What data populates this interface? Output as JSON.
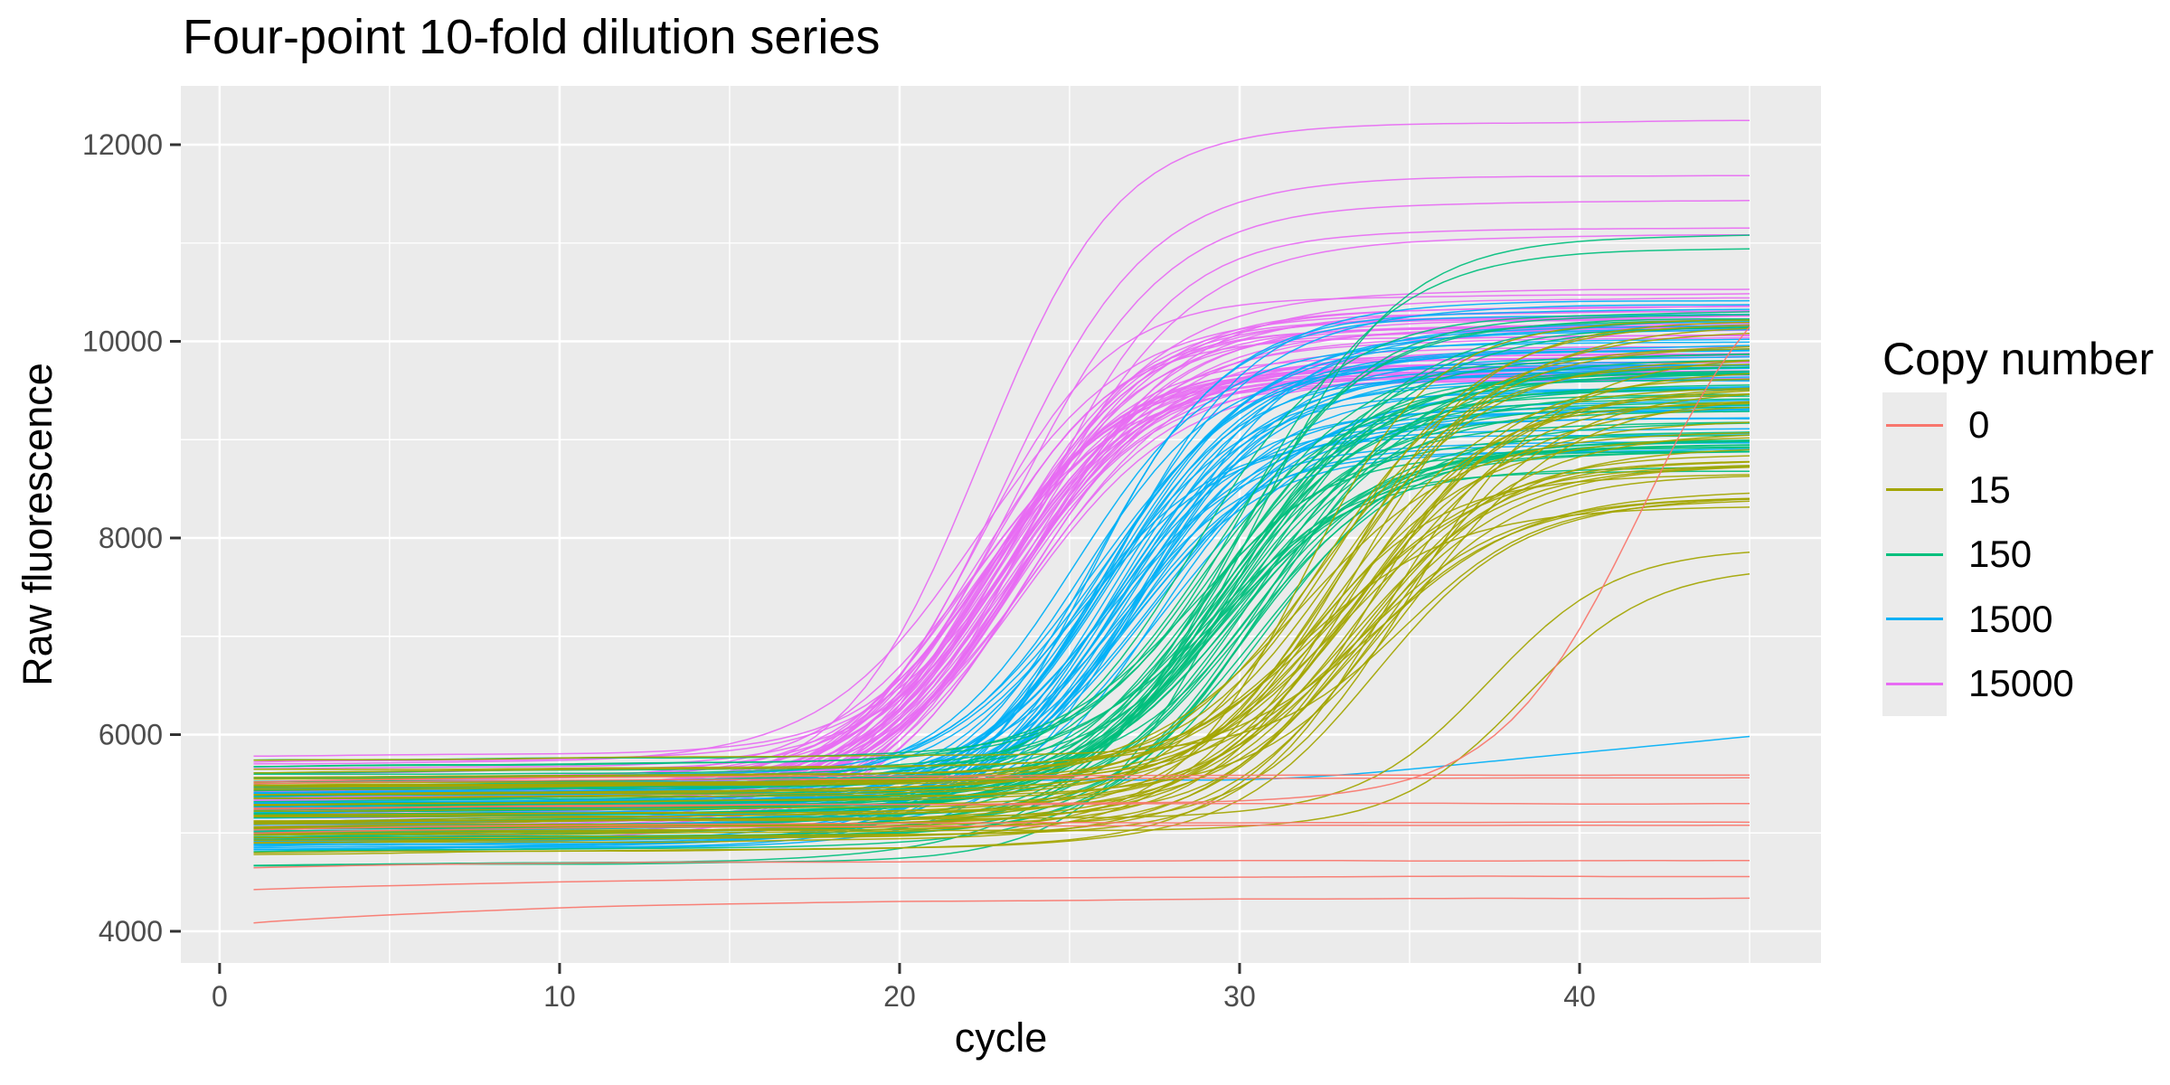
{
  "chart_data": {
    "type": "line",
    "title": "Four-point 10-fold dilution series",
    "xlabel": "cycle",
    "ylabel": "Raw fluorescence",
    "legend_title": "Copy number",
    "legend_position": "right",
    "grid": true,
    "x_ticks": [
      0,
      10,
      20,
      30,
      40
    ],
    "x_minor_ticks": [
      5,
      15,
      25,
      35,
      45
    ],
    "y_ticks": [
      4000,
      6000,
      8000,
      10000,
      12000
    ],
    "y_minor_ticks": [
      5000,
      7000,
      9000,
      11000
    ],
    "xlim": [
      -1.14,
      47.1
    ],
    "ylim": [
      3678,
      12598
    ],
    "cycle_range": [
      1,
      45
    ],
    "cycle_step": 0.5,
    "seed": 11,
    "series": [
      {
        "name": "0",
        "color": "#F8766D",
        "n_wells": 9,
        "kind": "ntc",
        "flat_wells": [
          [
            4085,
            4340
          ],
          [
            4420,
            4560
          ],
          [
            4650,
            4720
          ],
          [
            5000,
            5080
          ],
          [
            5030,
            5110
          ],
          [
            5240,
            5300
          ],
          [
            5500,
            5560
          ],
          [
            5520,
            5590
          ]
        ],
        "late_riser": {
          "base": 5250,
          "cq": 41.8,
          "steepness": 2.1,
          "end_value": 10150
        }
      },
      {
        "name": "15",
        "color": "#A3A500",
        "n_wells": 42,
        "kind": "dilution",
        "n_typical": 40,
        "cq_range": [
          31.4,
          35.6
        ],
        "plateau_range": [
          8300,
          10300
        ],
        "base_range": [
          4620,
          5780
        ],
        "late_wells": [
          {
            "cq": 37.3,
            "steepness": 1.9,
            "end_value": 7860
          },
          {
            "cq": 38.4,
            "steepness": 1.9,
            "end_value": 7640
          }
        ]
      },
      {
        "name": "150",
        "color": "#00BF7D",
        "n_wells": 46,
        "kind": "dilution",
        "n_typical": 44,
        "cq_range": [
          28.1,
          31.2
        ],
        "plateau_range": [
          8650,
          10300
        ],
        "base_range": [
          4650,
          5800
        ],
        "plateau_outliers": [
          {
            "plateau": 10950,
            "cq": 30.2
          },
          {
            "plateau": 11080,
            "cq": 30.6
          }
        ]
      },
      {
        "name": "1500",
        "color": "#00B0F6",
        "n_wells": 45,
        "kind": "dilution",
        "n_typical": 44,
        "cq_range": [
          24.8,
          27.9
        ],
        "plateau_range": [
          8850,
          10420
        ],
        "base_range": [
          4700,
          5750
        ],
        "failed_wells": [
          {
            "base": 5520,
            "rise_start": 29,
            "end_value": 6030
          }
        ]
      },
      {
        "name": "15000",
        "color": "#E76BF3",
        "n_wells": 51,
        "kind": "dilution",
        "n_typical": 46,
        "cq_range": [
          21.4,
          24.6
        ],
        "plateau_range": [
          9600,
          10600
        ],
        "base_range": [
          4850,
          5820
        ],
        "plateau_outliers": [
          {
            "plateau": 12240,
            "cq": 22.4
          },
          {
            "plateau": 11690,
            "cq": 23.0
          },
          {
            "plateau": 11430,
            "cq": 23.4
          },
          {
            "plateau": 11150,
            "cq": 24.0
          },
          {
            "plateau": 11080,
            "cq": 24.3
          }
        ]
      }
    ]
  },
  "style": {
    "panel_bg": "#EBEBEB",
    "grid_color": "#FFFFFF",
    "tick_color": "#333333",
    "tick_label_color": "#4D4D4D",
    "text_color": "#000000",
    "background": "#FFFFFF"
  }
}
